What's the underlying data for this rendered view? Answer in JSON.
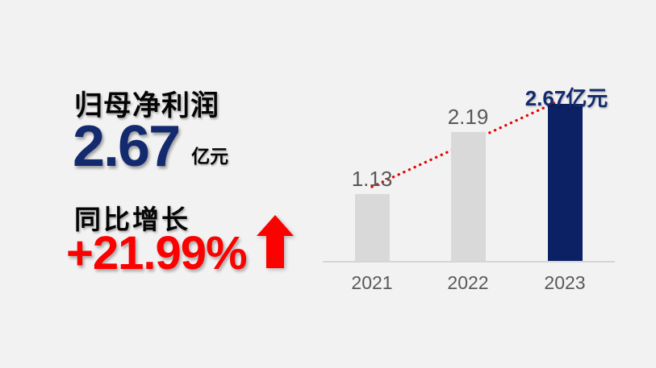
{
  "canvas": {
    "background": "#f2f2f2"
  },
  "panel": {
    "title": "归母净利润",
    "value": "2.67",
    "unit": "亿元",
    "growth_label": "同比增长",
    "growth_value": "+21.99%",
    "value_color": "#142a6e",
    "growth_color": "#fb0100",
    "arrow_icon": "up-arrow"
  },
  "chart_data": {
    "type": "bar",
    "categories": [
      "2021",
      "2022",
      "2023"
    ],
    "values": [
      1.13,
      2.19,
      2.67
    ],
    "value_labels": [
      "1.13",
      "2.19",
      "2.67亿元"
    ],
    "unit": "亿元",
    "highlight_index": 2,
    "title": "",
    "xlabel": "",
    "ylabel": "",
    "ylim": [
      0,
      2.67
    ],
    "grid": false,
    "legend": false,
    "bar_color": "#d9d9d9",
    "highlight_bar_color": "#0c2164",
    "label_color": "#595959",
    "highlight_label_color": "#142a6e",
    "axis_line_color": "#d5d5d5",
    "trendline": {
      "show": true,
      "style": "dotted",
      "color": "#e10600",
      "from": "2021",
      "to": "2023"
    }
  }
}
